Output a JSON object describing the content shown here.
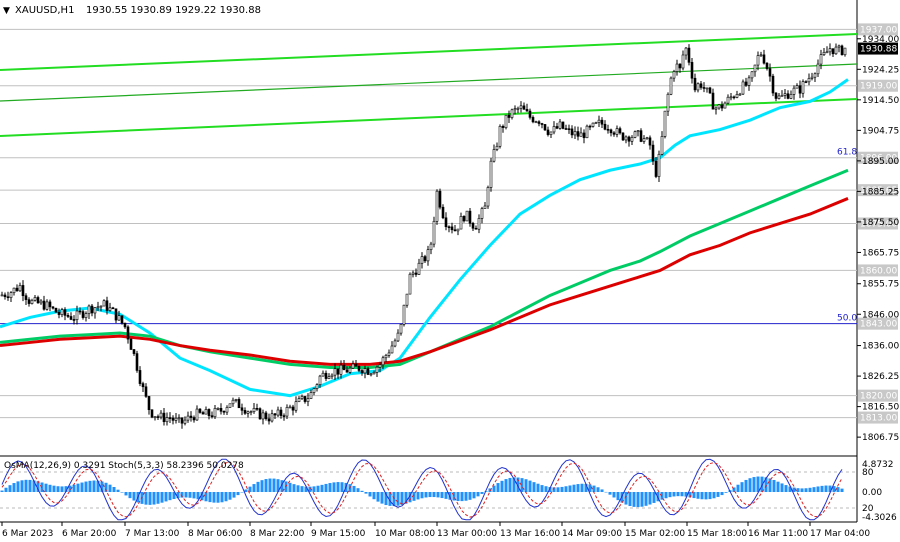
{
  "chart_data": {
    "type": "candlestick",
    "symbol_title": "XAUUSD,H1",
    "ohlc_header": "1930.55 1930.89 1929.22 1930.88",
    "price_axis": {
      "min": 1802,
      "max": 1940,
      "ticks": [
        "1934.00",
        "1924.25",
        "1914.50",
        "1904.75",
        "1895.00",
        "1885.25",
        "1875.50",
        "1865.75",
        "1855.75",
        "1846.00",
        "1836.00",
        "1826.25",
        "1816.50",
        "1806.75"
      ]
    },
    "price_levels": [
      {
        "value": 1937.0,
        "label": "1937.00",
        "color": "#c0c0c0"
      },
      {
        "value": 1919.0,
        "label": "1919.00",
        "color": "#c0c0c0"
      },
      {
        "value": 1896.0,
        "label": "1896.00",
        "color": "#c0c0c0"
      },
      {
        "value": 1885.65,
        "label": "1885.65",
        "color": "#c0c0c0"
      },
      {
        "value": 1875.0,
        "label": "1875.00",
        "color": "#c0c0c0"
      },
      {
        "value": 1860.0,
        "label": "1860.00",
        "color": "#c0c0c0"
      },
      {
        "value": 1843.0,
        "label": "1843.00",
        "color": "#2222cc"
      },
      {
        "value": 1820.0,
        "label": "1820.00",
        "color": "#c0c0c0"
      },
      {
        "value": 1813.0,
        "label": "1813.00",
        "color": "#c0c0c0"
      }
    ],
    "current_price": {
      "value": 1930.88,
      "label": "1930.88"
    },
    "fib_labels": [
      {
        "text": "61.8",
        "price": 1896.0
      },
      {
        "text": "50.0",
        "price": 1843.0
      }
    ],
    "time_labels": [
      "6 Mar 2023",
      "6 Mar 20:00",
      "7 Mar 13:00",
      "8 Mar 06:00",
      "8 Mar 22:00",
      "9 Mar 15:00",
      "10 Mar 08:00",
      "13 Mar 00:00",
      "13 Mar 16:00",
      "14 Mar 09:00",
      "15 Mar 02:00",
      "15 Mar 18:00",
      "16 Mar 11:00",
      "17 Mar 04:00"
    ],
    "close_path": [
      [
        0,
        1852
      ],
      [
        10,
        1853
      ],
      [
        20,
        1855
      ],
      [
        30,
        1850
      ],
      [
        45,
        1849
      ],
      [
        60,
        1846
      ],
      [
        75,
        1845
      ],
      [
        90,
        1848
      ],
      [
        105,
        1849
      ],
      [
        115,
        1846
      ],
      [
        125,
        1842
      ],
      [
        135,
        1832
      ],
      [
        142,
        1823
      ],
      [
        150,
        1815
      ],
      [
        160,
        1813
      ],
      [
        170,
        1813
      ],
      [
        180,
        1811
      ],
      [
        195,
        1814
      ],
      [
        210,
        1814
      ],
      [
        220,
        1815
      ],
      [
        230,
        1818
      ],
      [
        240,
        1817
      ],
      [
        250,
        1815
      ],
      [
        260,
        1814
      ],
      [
        270,
        1813
      ],
      [
        280,
        1814
      ],
      [
        290,
        1816
      ],
      [
        300,
        1818
      ],
      [
        310,
        1820
      ],
      [
        320,
        1826
      ],
      [
        330,
        1828
      ],
      [
        345,
        1828
      ],
      [
        360,
        1829
      ],
      [
        370,
        1828
      ],
      [
        380,
        1830
      ],
      [
        390,
        1835
      ],
      [
        400,
        1840
      ],
      [
        405,
        1850
      ],
      [
        410,
        1858
      ],
      [
        420,
        1862
      ],
      [
        430,
        1866
      ],
      [
        437,
        1885
      ],
      [
        445,
        1876
      ],
      [
        455,
        1873
      ],
      [
        465,
        1878
      ],
      [
        475,
        1874
      ],
      [
        485,
        1880
      ],
      [
        490,
        1893
      ],
      [
        495,
        1898
      ],
      [
        500,
        1905
      ],
      [
        510,
        1910
      ],
      [
        520,
        1912
      ],
      [
        530,
        1909
      ],
      [
        540,
        1908
      ],
      [
        550,
        1904
      ],
      [
        560,
        1906
      ],
      [
        570,
        1904
      ],
      [
        580,
        1903
      ],
      [
        590,
        1905
      ],
      [
        600,
        1907
      ],
      [
        610,
        1906
      ],
      [
        620,
        1903
      ],
      [
        630,
        1903
      ],
      [
        640,
        1903
      ],
      [
        650,
        1900
      ],
      [
        655,
        1890
      ],
      [
        660,
        1897
      ],
      [
        665,
        1910
      ],
      [
        670,
        1920
      ],
      [
        675,
        1926
      ],
      [
        680,
        1924
      ],
      [
        685,
        1932
      ],
      [
        690,
        1926
      ],
      [
        695,
        1918
      ],
      [
        700,
        1920
      ],
      [
        705,
        1918
      ],
      [
        710,
        1915
      ],
      [
        715,
        1912
      ],
      [
        720,
        1912
      ],
      [
        730,
        1915
      ],
      [
        740,
        1918
      ],
      [
        750,
        1920
      ],
      [
        755,
        1925
      ],
      [
        760,
        1930
      ],
      [
        765,
        1927
      ],
      [
        770,
        1922
      ],
      [
        775,
        1916
      ],
      [
        780,
        1915
      ],
      [
        790,
        1917
      ],
      [
        800,
        1918
      ],
      [
        810,
        1922
      ],
      [
        820,
        1927
      ],
      [
        830,
        1931
      ],
      [
        840,
        1930
      ],
      [
        845,
        1931
      ]
    ],
    "moving_averages": [
      {
        "color": "#00e5ff",
        "points": [
          [
            0,
            1842
          ],
          [
            30,
            1845
          ],
          [
            60,
            1847
          ],
          [
            90,
            1848
          ],
          [
            120,
            1846
          ],
          [
            150,
            1840
          ],
          [
            180,
            1832
          ],
          [
            210,
            1828
          ],
          [
            250,
            1822
          ],
          [
            290,
            1820
          ],
          [
            320,
            1823
          ],
          [
            350,
            1827
          ],
          [
            380,
            1828
          ],
          [
            400,
            1832
          ],
          [
            430,
            1845
          ],
          [
            460,
            1857
          ],
          [
            490,
            1868
          ],
          [
            520,
            1878
          ],
          [
            550,
            1884
          ],
          [
            580,
            1889
          ],
          [
            610,
            1892
          ],
          [
            640,
            1894
          ],
          [
            660,
            1896
          ],
          [
            675,
            1900
          ],
          [
            690,
            1903
          ],
          [
            720,
            1905
          ],
          [
            750,
            1908
          ],
          [
            780,
            1912
          ],
          [
            810,
            1914
          ],
          [
            830,
            1917
          ],
          [
            848,
            1921
          ]
        ]
      },
      {
        "color": "#00cc66",
        "points": [
          [
            0,
            1837
          ],
          [
            30,
            1838
          ],
          [
            60,
            1839
          ],
          [
            90,
            1839.5
          ],
          [
            120,
            1840
          ],
          [
            150,
            1839
          ],
          [
            180,
            1836
          ],
          [
            210,
            1834
          ],
          [
            250,
            1832
          ],
          [
            290,
            1830
          ],
          [
            330,
            1829
          ],
          [
            370,
            1829
          ],
          [
            400,
            1830
          ],
          [
            430,
            1834
          ],
          [
            460,
            1838
          ],
          [
            490,
            1842
          ],
          [
            520,
            1847
          ],
          [
            550,
            1852
          ],
          [
            580,
            1856
          ],
          [
            610,
            1860
          ],
          [
            640,
            1863
          ],
          [
            660,
            1866
          ],
          [
            690,
            1871
          ],
          [
            720,
            1875
          ],
          [
            750,
            1879
          ],
          [
            780,
            1883
          ],
          [
            810,
            1887
          ],
          [
            848,
            1892
          ]
        ]
      },
      {
        "color": "#dd0000",
        "points": [
          [
            0,
            1836
          ],
          [
            30,
            1837
          ],
          [
            60,
            1838
          ],
          [
            90,
            1838.5
          ],
          [
            120,
            1839
          ],
          [
            150,
            1838
          ],
          [
            180,
            1836
          ],
          [
            210,
            1834.5
          ],
          [
            250,
            1833
          ],
          [
            290,
            1831
          ],
          [
            330,
            1830
          ],
          [
            370,
            1830
          ],
          [
            400,
            1831
          ],
          [
            430,
            1834
          ],
          [
            460,
            1837.5
          ],
          [
            490,
            1841
          ],
          [
            520,
            1845
          ],
          [
            550,
            1849
          ],
          [
            580,
            1852
          ],
          [
            610,
            1855
          ],
          [
            640,
            1858
          ],
          [
            660,
            1860
          ],
          [
            690,
            1865
          ],
          [
            720,
            1868
          ],
          [
            750,
            1872
          ],
          [
            780,
            1875
          ],
          [
            810,
            1878
          ],
          [
            848,
            1883
          ]
        ]
      }
    ],
    "indicator": {
      "label": "OsMA(12,26,9) 0.3291  Stoch(5,3,3) 58.2396 50.0278",
      "axis_labels": [
        "4.8732",
        "80",
        "0.00",
        "20",
        "-4.3026"
      ]
    }
  }
}
